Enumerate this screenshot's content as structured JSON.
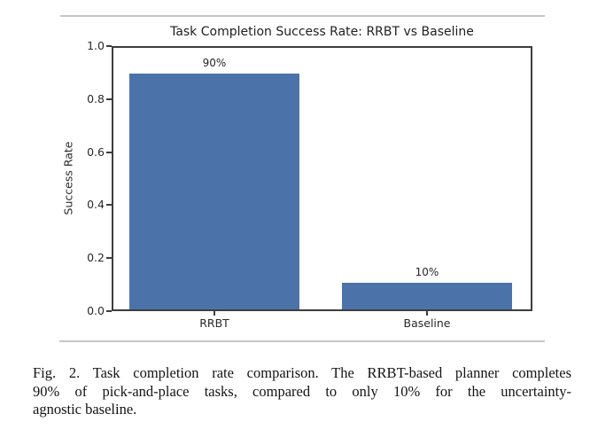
{
  "chart_data": {
    "type": "bar",
    "title": "Task Completion Success Rate: RRBT vs Baseline",
    "xlabel": "",
    "ylabel": "Success Rate",
    "categories": [
      "RRBT",
      "Baseline"
    ],
    "values": [
      0.9,
      0.1
    ],
    "bar_labels": [
      "90%",
      "10%"
    ],
    "ylim": [
      0.0,
      1.0
    ],
    "yticks": [
      "1.0",
      "0.8",
      "0.6",
      "0.4",
      "0.2",
      "0.0"
    ],
    "grid": false,
    "legend": "none",
    "bar_color": "#4c73a9"
  },
  "caption": {
    "lines": [
      "Fig. 2.  Task completion rate comparison. The RRBT-based planner completes",
      "90% of pick-and-place tasks, compared to only 10% for the uncertainty-",
      "agnostic baseline."
    ]
  }
}
